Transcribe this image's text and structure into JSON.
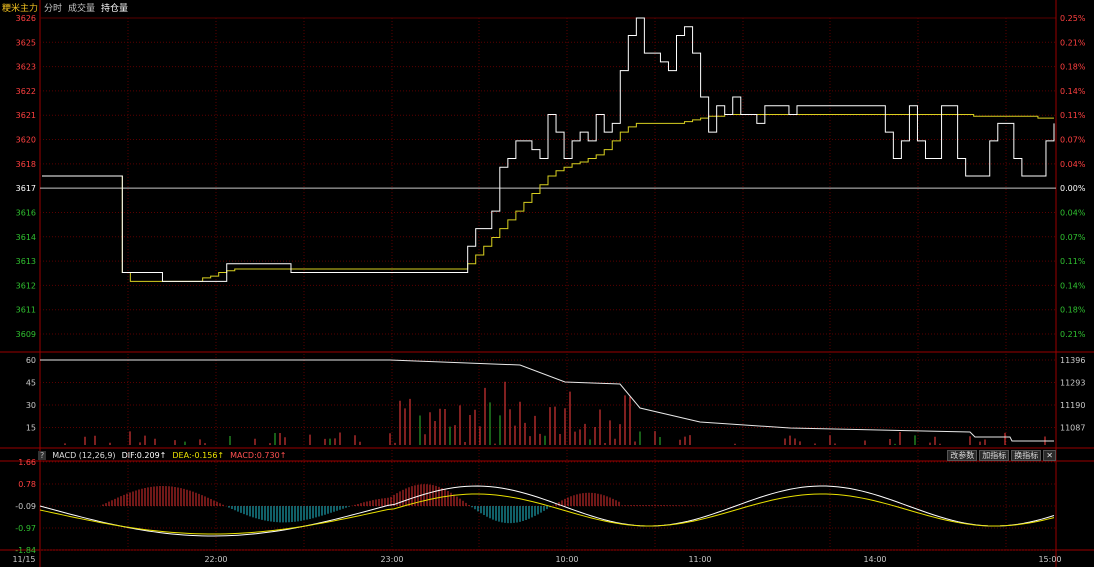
{
  "header": {
    "title": "粳米主力",
    "tabs": [
      "分时",
      "成交量",
      "持仓量"
    ]
  },
  "price_axis": {
    "left": [
      "3626",
      "3625",
      "3623",
      "3622",
      "3621",
      "3620",
      "3618",
      "3617",
      "3616",
      "3614",
      "3613",
      "3612",
      "3611",
      "3609"
    ],
    "right": [
      "0.25%",
      "0.21%",
      "0.18%",
      "0.14%",
      "0.11%",
      "0.07%",
      "0.04%",
      "0.00%",
      "0.04%",
      "0.07%",
      "0.11%",
      "0.14%",
      "0.18%",
      "0.21%"
    ],
    "base_value": 3617
  },
  "volume_axis": {
    "left": [
      "60",
      "45",
      "30",
      "15"
    ],
    "right": [
      "11396",
      "11293",
      "11190",
      "11087"
    ]
  },
  "macd_axis": {
    "left": [
      "1.66",
      "0.78",
      "-0.09",
      "-0.97",
      "-1.84"
    ]
  },
  "time_axis": [
    "11/15",
    "22:00",
    "23:00",
    "10:00",
    "11:00",
    "14:00",
    "15:00"
  ],
  "macd": {
    "question": "?",
    "name": "MACD (12,26,9)",
    "dif": "DIF:0.209↑",
    "dea": "DEA:-0.156↑",
    "macd": "MACD:0.730↑",
    "buttons": [
      "改参数",
      "加指标",
      "换指标",
      "✕"
    ]
  },
  "colors": {
    "price_line": "#ffffff",
    "avg_line": "#d8d020",
    "up": "#ff4040",
    "down": "#30c030",
    "grid": "#5a0000",
    "macd_up": "#e03030",
    "macd_down": "#20c0d0"
  },
  "chart_data": {
    "type": "line",
    "series": [],
    "price": [
      3617,
      3617,
      3617,
      3617,
      3617,
      3617,
      3617,
      3617,
      3617,
      3617,
      3611.5,
      3611.5,
      3611.5,
      3611.5,
      3611.5,
      3611,
      3611,
      3611,
      3611,
      3611,
      3611,
      3611,
      3611,
      3612,
      3612,
      3612,
      3612,
      3612,
      3612,
      3612,
      3612,
      3611.5,
      3611.5,
      3611.5,
      3611.5,
      3611.5,
      3611.5,
      3611.5,
      3611.5,
      3611.5,
      3611.5,
      3611.5,
      3611.5,
      3611.5,
      3611.5,
      3611.5,
      3611.5,
      3611.5,
      3611.5,
      3611.5,
      3611.5,
      3611.5,
      3611.5,
      3613,
      3614,
      3614,
      3615,
      3617.5,
      3618,
      3619,
      3619,
      3618.5,
      3618,
      3620.5,
      3619.5,
      3618,
      3619,
      3619.5,
      3619,
      3620.5,
      3619.5,
      3620,
      3623,
      3625,
      3626,
      3624,
      3624,
      3623.5,
      3623,
      3625,
      3625.5,
      3624,
      3621.5,
      3619.5,
      3621,
      3620.5,
      3621.5,
      3620.5,
      3620.5,
      3620,
      3621,
      3621,
      3621,
      3620.5,
      3621,
      3621,
      3621,
      3621,
      3621,
      3621,
      3621,
      3621,
      3621,
      3621,
      3621,
      3619.5,
      3618,
      3619,
      3621,
      3619,
      3618,
      3618,
      3621,
      3621,
      3618,
      3617,
      3617,
      3617,
      3619,
      3620,
      3620,
      3618,
      3617,
      3617,
      3617,
      3619,
      3620
    ],
    "avg": [
      3617,
      3617,
      3617,
      3617,
      3617,
      3617,
      3617,
      3617,
      3617,
      3617,
      3611.5,
      3611,
      3611,
      3611,
      3611,
      3611,
      3611,
      3611,
      3611,
      3611,
      3611.2,
      3611.3,
      3611.5,
      3611.6,
      3611.7,
      3611.7,
      3611.7,
      3611.7,
      3611.7,
      3611.7,
      3611.7,
      3611.7,
      3611.7,
      3611.7,
      3611.7,
      3611.7,
      3611.7,
      3611.7,
      3611.7,
      3611.7,
      3611.7,
      3611.7,
      3611.7,
      3611.7,
      3611.7,
      3611.7,
      3611.7,
      3611.7,
      3611.7,
      3611.7,
      3611.7,
      3611.7,
      3611.7,
      3612,
      3612.5,
      3613,
      3613.5,
      3614,
      3614.5,
      3615,
      3615.5,
      3616,
      3616.5,
      3617,
      3617.3,
      3617.5,
      3617.7,
      3617.8,
      3618,
      3618.2,
      3618.5,
      3619,
      3619.5,
      3619.8,
      3620,
      3620,
      3620,
      3620,
      3620,
      3620,
      3620.1,
      3620.2,
      3620.3,
      3620.4,
      3620.4,
      3620.5,
      3620.5,
      3620.5,
      3620.5,
      3620.5,
      3620.5,
      3620.5,
      3620.5,
      3620.5,
      3620.5,
      3620.5,
      3620.5,
      3620.5,
      3620.5,
      3620.5,
      3620.5,
      3620.5,
      3620.5,
      3620.5,
      3620.5,
      3620.5,
      3620.5,
      3620.5,
      3620.5,
      3620.5,
      3620.5,
      3620.5,
      3620.5,
      3620.5,
      3620.5,
      3620.5,
      3620.4,
      3620.4,
      3620.4,
      3620.4,
      3620.4,
      3620.4,
      3620.4,
      3620.4,
      3620.3,
      3620.3,
      3620.3
    ],
    "ylim": [
      3608,
      3626
    ]
  }
}
